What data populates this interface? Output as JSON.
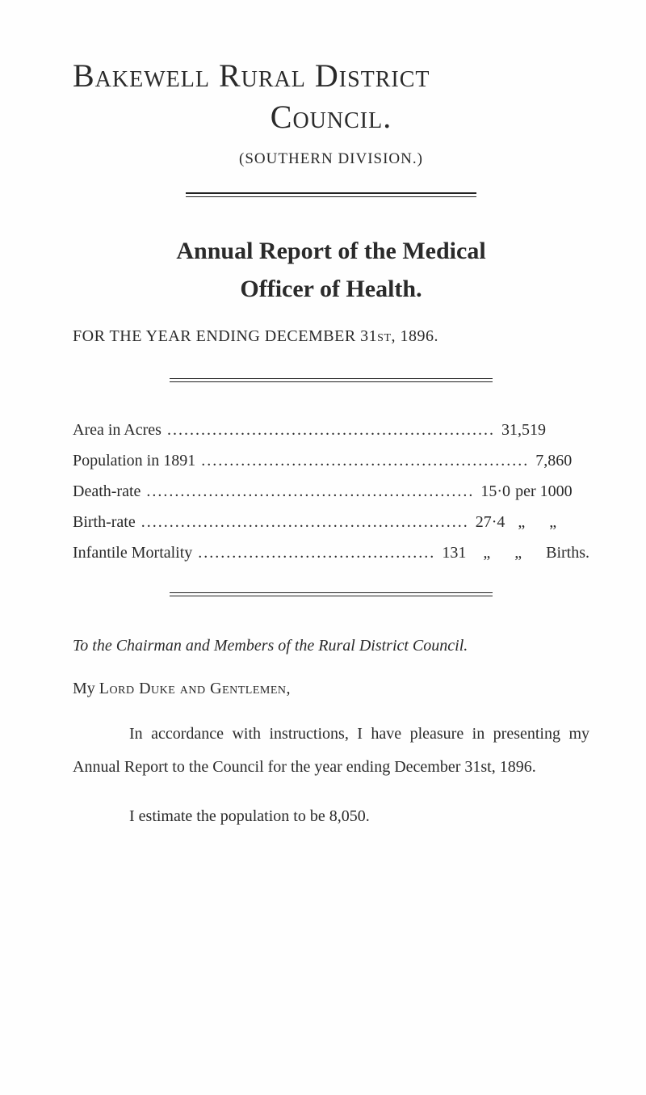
{
  "colors": {
    "text": "#2a2a2a",
    "background": "#fefefe",
    "rule": "#222222"
  },
  "typography": {
    "title_fontsize_pt": 30,
    "subtitle_fontsize_pt": 14,
    "heading_fontsize_pt": 22,
    "body_fontsize_pt": 15,
    "font_family": "Times New Roman / old-style serif"
  },
  "title": {
    "line1": "Bakewell Rural District",
    "line2": "Council.",
    "subdivision": "(SOUTHERN DIVISION.)"
  },
  "report_heading": {
    "line1": "Annual Report of the Medical",
    "line2": "Officer of Health."
  },
  "year_line": "FOR THE YEAR ENDING DECEMBER 31st, 1896.",
  "stats": [
    {
      "label": "Area in Acres",
      "value": "31,519",
      "suffix": ""
    },
    {
      "label": "Population in 1891",
      "value": "7,860",
      "suffix": ""
    },
    {
      "label": "Death-rate",
      "value": "15·0",
      "suffix": "per 1000"
    },
    {
      "label": "Birth-rate",
      "value": "27·4",
      "suffix": "  „      „"
    },
    {
      "label": "Infantile Mortality",
      "value": "131",
      "suffix": "   „      „      Births."
    }
  ],
  "addressee": "To the Chairman and Members of the Rural District Council.",
  "salutation_prefix": "My ",
  "salutation_sc": "Lord Duke and Gentlemen,",
  "paragraphs": [
    "In accordance with instructions, I have pleasure in presenting my Annual Report to the Council for the year ending December 31st, 1896.",
    "I estimate the population to be 8,050."
  ]
}
